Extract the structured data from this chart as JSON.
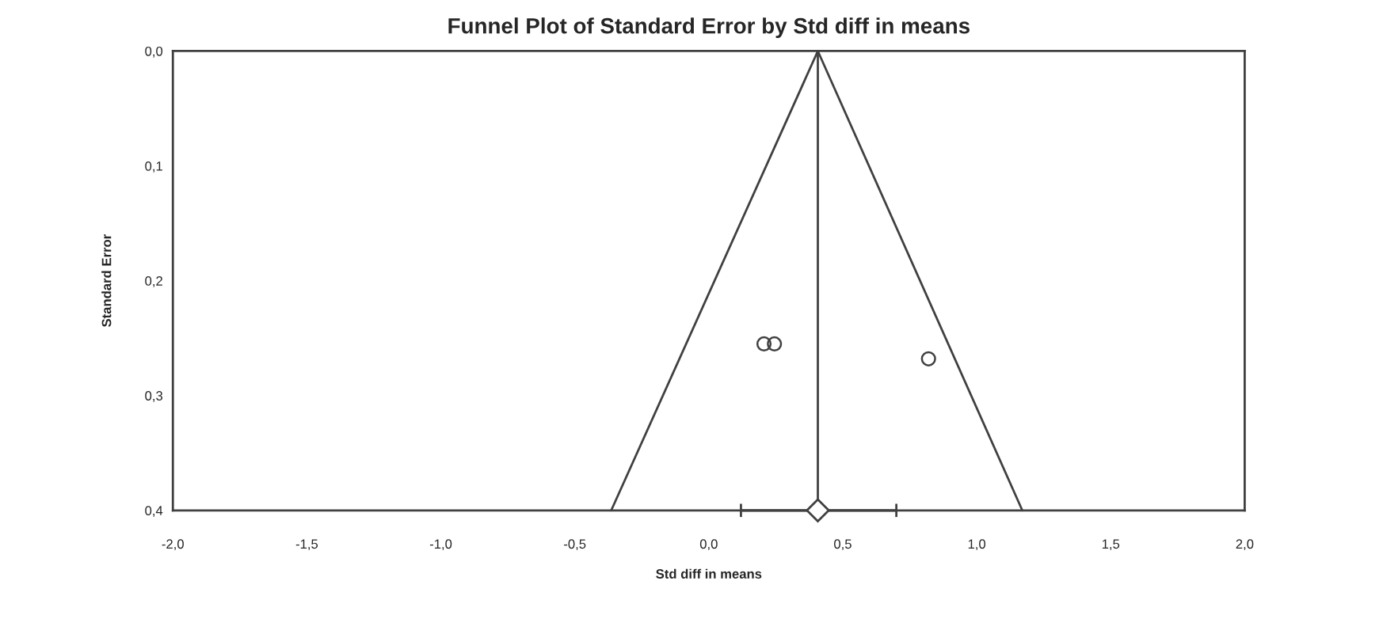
{
  "chart_data": {
    "type": "scatter",
    "title": "Funnel Plot of Standard Error by Std diff in means",
    "xlabel": "Std diff in means",
    "ylabel": "Standard Error",
    "x": [
      0.206,
      0.245,
      0.82
    ],
    "values": [
      0.255,
      0.255,
      0.268
    ],
    "color": "#404040",
    "marker": "circle",
    "series": [
      {
        "type": "line",
        "color": "#404040",
        "marker": "none",
        "x": [
          -0.364,
          0.407,
          1.17
        ],
        "values": [
          0.4,
          0.0,
          0.4
        ]
      },
      {
        "type": "scatter",
        "color": "#404040",
        "marker": "diamond",
        "x": [
          0.407
        ],
        "values": [
          0.4
        ],
        "xerrors": [
          [
            0.12,
            0.7
          ]
        ]
      }
    ],
    "ref_lines": [
      {
        "axis": "x",
        "value": 0.407,
        "color": "#404040"
      }
    ],
    "xlim": [
      -2.0,
      2.0
    ],
    "ylim": [
      0.4,
      0.0
    ],
    "xticks": [
      {
        "value": -2.0,
        "label": "-2,0"
      },
      {
        "value": -1.5,
        "label": "-1,5"
      },
      {
        "value": -1.0,
        "label": "-1,0"
      },
      {
        "value": -0.5,
        "label": "-0,5"
      },
      {
        "value": 0.0,
        "label": "0,0"
      },
      {
        "value": 0.5,
        "label": "0,5"
      },
      {
        "value": 1.0,
        "label": "1,0"
      },
      {
        "value": 1.5,
        "label": "1,5"
      },
      {
        "value": 2.0,
        "label": "2,0"
      }
    ],
    "yticks": [
      {
        "value": 0.0,
        "label": "0,0"
      },
      {
        "value": 0.1,
        "label": "0,1"
      },
      {
        "value": 0.2,
        "label": "0,2"
      },
      {
        "value": 0.3,
        "label": "0,3"
      },
      {
        "value": 0.4,
        "label": "0,4"
      }
    ],
    "grid": false,
    "legend": false
  }
}
